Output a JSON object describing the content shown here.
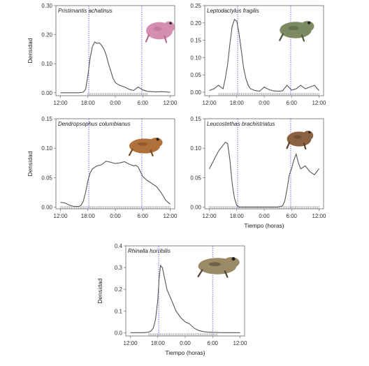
{
  "chart_data": [
    {
      "type": "line",
      "title": "Pristimantis achatinus",
      "xlabel": "",
      "ylabel": "Densidad",
      "x_tick_labels": [
        "12:00",
        "18:00",
        "0:00",
        "6:00",
        "12:00"
      ],
      "x_tick_values": [
        12,
        18,
        24,
        30,
        36
      ],
      "xlim": [
        11,
        37
      ],
      "ylim": [
        -0.01,
        0.3
      ],
      "y_ticks": [
        0.0,
        0.1,
        0.2,
        0.3
      ],
      "y_tick_labels": [
        "0.00",
        "0.10",
        "0.20",
        "0.30"
      ],
      "vlines": [
        18.2,
        29.8
      ],
      "x": [
        12,
        13,
        14,
        15,
        16,
        17,
        17.5,
        18,
        18.5,
        19,
        19.5,
        20,
        20.5,
        21,
        21.5,
        22,
        22.5,
        23,
        23.5,
        24,
        25,
        26,
        27,
        28,
        29,
        30,
        31,
        32,
        33,
        34,
        35,
        36
      ],
      "y": [
        0.0,
        0.0,
        0.0,
        0.0,
        0.0,
        0.002,
        0.012,
        0.06,
        0.12,
        0.16,
        0.175,
        0.17,
        0.172,
        0.163,
        0.15,
        0.13,
        0.1,
        0.075,
        0.05,
        0.035,
        0.025,
        0.02,
        0.012,
        0.008,
        0.02,
        0.01,
        0.005,
        0.004,
        0.003,
        0.004,
        0.003,
        0.002
      ],
      "rug_range": [
        18,
        31
      ]
    },
    {
      "type": "line",
      "title": "Leptodactylus fragilis",
      "xlabel": "",
      "ylabel": "",
      "x_tick_labels": [
        "12:00",
        "18:00",
        "0:00",
        "6:00",
        "12:00"
      ],
      "x_tick_values": [
        12,
        18,
        24,
        30,
        36
      ],
      "xlim": [
        11,
        37
      ],
      "ylim": [
        -0.01,
        0.25
      ],
      "y_ticks": [
        0.0,
        0.05,
        0.1,
        0.15,
        0.2,
        0.25
      ],
      "y_tick_labels": [
        "0.00",
        "0.05",
        "0.10",
        "0.15",
        "0.20",
        "0.25"
      ],
      "vlines": [
        18.2,
        29.8
      ],
      "x": [
        12,
        13,
        14,
        15,
        15.5,
        16,
        16.5,
        17,
        17.5,
        18,
        18.5,
        19,
        19.5,
        20,
        20.5,
        21,
        22,
        23,
        24,
        25,
        26,
        27,
        28,
        29,
        30,
        31,
        32,
        33,
        34,
        35,
        36
      ],
      "y": [
        0.005,
        0.01,
        0.02,
        0.01,
        0.04,
        0.08,
        0.14,
        0.19,
        0.21,
        0.205,
        0.17,
        0.12,
        0.07,
        0.04,
        0.02,
        0.01,
        0.005,
        0.003,
        0.015,
        0.008,
        0.004,
        0.003,
        0.004,
        0.02,
        0.006,
        0.01,
        0.02,
        0.01,
        0.015,
        0.02,
        0.005
      ],
      "rug_range": [
        14,
        36
      ]
    },
    {
      "type": "line",
      "title": "Dendropsophus columbianus",
      "xlabel": "",
      "ylabel": "Densidad",
      "x_tick_labels": [
        "12:00",
        "18:00",
        "0:00",
        "6:00",
        "12:00"
      ],
      "x_tick_values": [
        12,
        18,
        24,
        30,
        36
      ],
      "xlim": [
        11,
        37
      ],
      "ylim": [
        -0.003,
        0.15
      ],
      "y_ticks": [
        0.0,
        0.05,
        0.1,
        0.15
      ],
      "y_tick_labels": [
        "0.00",
        "0.05",
        "0.10",
        "0.15"
      ],
      "vlines": [
        18.2,
        29.8
      ],
      "x": [
        12,
        13,
        14,
        15,
        16,
        16.5,
        17,
        17.5,
        18,
        18.5,
        19,
        20,
        21,
        22,
        23,
        24,
        25,
        26,
        27,
        28,
        28.5,
        29,
        29.5,
        30,
        31,
        32,
        33,
        34,
        35,
        36
      ],
      "y": [
        0.008,
        0.007,
        0.003,
        0.001,
        0.001,
        0.003,
        0.01,
        0.025,
        0.045,
        0.058,
        0.065,
        0.07,
        0.072,
        0.078,
        0.076,
        0.074,
        0.075,
        0.077,
        0.073,
        0.07,
        0.071,
        0.068,
        0.06,
        0.052,
        0.045,
        0.04,
        0.035,
        0.025,
        0.012,
        0.005
      ],
      "rug_range": [
        12,
        36
      ]
    },
    {
      "type": "line",
      "title": "Leucostethas brachistriatus",
      "xlabel": "Tiempo (horas)",
      "ylabel": "",
      "x_tick_labels": [
        "12:00",
        "18:00",
        "0:00",
        "6:00",
        "12:00"
      ],
      "x_tick_values": [
        12,
        18,
        24,
        30,
        36
      ],
      "xlim": [
        11,
        37
      ],
      "ylim": [
        -0.003,
        0.15
      ],
      "y_ticks": [
        0.0,
        0.05,
        0.1,
        0.15
      ],
      "y_tick_labels": [
        "0.00",
        "0.05",
        "0.10",
        "0.15"
      ],
      "vlines": [
        18.2,
        29.8
      ],
      "x": [
        12,
        13,
        14,
        15,
        15.5,
        16,
        16.5,
        17,
        17.5,
        18,
        18.5,
        19,
        20,
        21,
        22,
        23,
        24,
        25,
        26,
        27,
        28,
        28.5,
        29,
        29.5,
        30,
        30.5,
        31,
        31.5,
        32,
        33,
        34,
        35,
        36
      ],
      "y": [
        0.065,
        0.08,
        0.095,
        0.105,
        0.11,
        0.108,
        0.08,
        0.04,
        0.015,
        0.003,
        0.0,
        0.0,
        0.0,
        0.0,
        0.0,
        0.0,
        0.0,
        0.0,
        0.0,
        0.0,
        0.002,
        0.01,
        0.03,
        0.055,
        0.065,
        0.08,
        0.09,
        0.075,
        0.065,
        0.07,
        0.06,
        0.055,
        0.065
      ],
      "rug_range": [
        12,
        36
      ]
    },
    {
      "type": "line",
      "title": "Rhinella horribilis",
      "xlabel": "Tiempo (horas)",
      "ylabel": "Densidad",
      "x_tick_labels": [
        "12:00",
        "18:00",
        "0:00",
        "6:00",
        "12:00"
      ],
      "x_tick_values": [
        12,
        18,
        24,
        30,
        36
      ],
      "xlim": [
        11,
        37
      ],
      "ylim": [
        -0.015,
        0.4
      ],
      "y_ticks": [
        0.0,
        0.1,
        0.2,
        0.3,
        0.4
      ],
      "y_tick_labels": [
        "0.0",
        "0.1",
        "0.2",
        "0.3",
        "0.4"
      ],
      "vlines": [
        18.2,
        30.0
      ],
      "x": [
        12,
        14,
        15,
        16,
        16.5,
        17,
        17.5,
        18,
        18.3,
        18.6,
        19,
        19.5,
        20,
        21,
        22,
        23,
        24,
        25,
        26,
        27,
        28,
        29,
        30,
        31,
        32,
        33,
        34,
        35,
        36
      ],
      "y": [
        0.0,
        0.0,
        0.0,
        0.003,
        0.008,
        0.02,
        0.06,
        0.15,
        0.25,
        0.31,
        0.3,
        0.25,
        0.2,
        0.15,
        0.1,
        0.07,
        0.05,
        0.04,
        0.02,
        0.01,
        0.005,
        0.003,
        0.002,
        0.001,
        0.0,
        0.0,
        0.0,
        0.0,
        0.0
      ],
      "rug_range": [
        16,
        31
      ]
    }
  ],
  "photos": [
    {
      "icon": "pink-frog-photo",
      "body": "#d48fb0",
      "accent": "#b56a92"
    },
    {
      "icon": "green-brown-frog-photo",
      "body": "#7c8a62",
      "accent": "#4e5a3c"
    },
    {
      "icon": "orange-brown-frog-photo",
      "body": "#b0703a",
      "accent": "#7c4a22"
    },
    {
      "icon": "brown-frog-photo",
      "body": "#8a6242",
      "accent": "#5a3f2a"
    },
    {
      "icon": "toad-photo",
      "body": "#9a8a66",
      "accent": "#4e4232"
    }
  ],
  "colors": {
    "curve": "#555555",
    "daylight_line": "#4a4ad6",
    "frame": "#666666"
  }
}
